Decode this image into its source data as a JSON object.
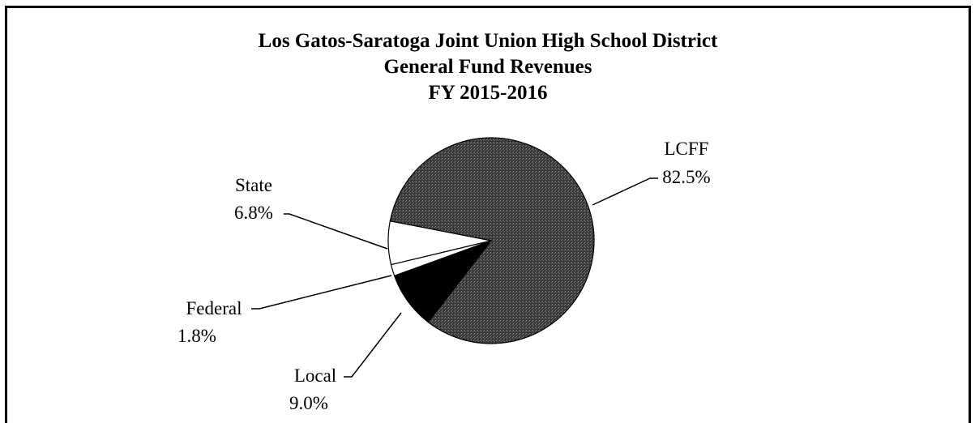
{
  "chart_data": {
    "type": "pie",
    "title_lines": [
      "Los Gatos-Saratoga Joint Union High School District",
      "General Fund Revenues",
      "FY 2015-2016"
    ],
    "slices": [
      {
        "name": "LCFF",
        "value": 82.5,
        "label_value": "82.5%",
        "fill": "#4a4a4a"
      },
      {
        "name": "Local",
        "value": 9.0,
        "label_value": "9.0%",
        "fill": "#000000"
      },
      {
        "name": "Federal",
        "value": 1.8,
        "label_value": "1.8%",
        "fill": "#ffffff"
      },
      {
        "name": "State",
        "value": 6.8,
        "label_value": "6.8%",
        "fill": "#ffffff"
      }
    ],
    "legend": "none",
    "labels": "outside with leader lines"
  }
}
